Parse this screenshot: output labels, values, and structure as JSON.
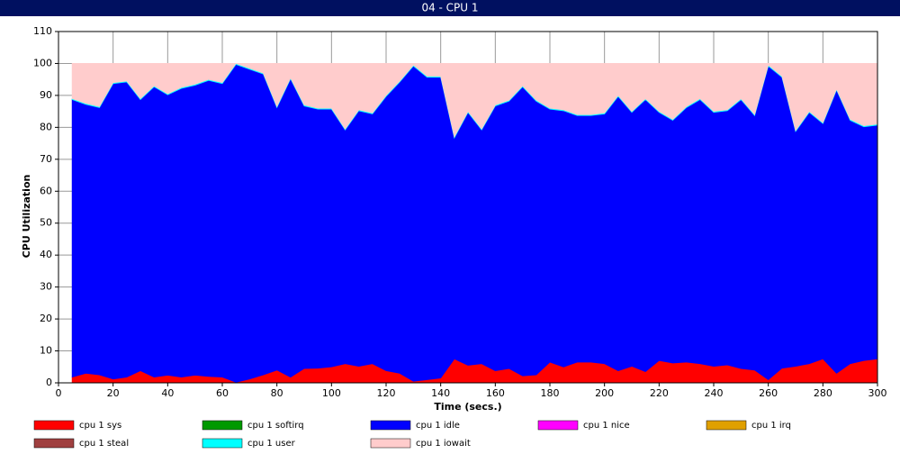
{
  "chart_data": {
    "type": "stacked_area",
    "title": "04 - CPU 1",
    "x_label": "Time (secs.)",
    "y_label": "CPU Utilization",
    "xlim": [
      0,
      300
    ],
    "xticks": [
      0,
      20,
      40,
      60,
      80,
      100,
      120,
      140,
      160,
      180,
      200,
      220,
      240,
      260,
      280,
      300
    ],
    "ylim": [
      0,
      110
    ],
    "yticks": [
      0,
      10,
      20,
      30,
      40,
      50,
      60,
      70,
      80,
      90,
      100,
      110
    ],
    "grid": true,
    "x": [
      5,
      10,
      15,
      20,
      25,
      30,
      35,
      40,
      45,
      50,
      55,
      60,
      65,
      70,
      75,
      80,
      85,
      90,
      95,
      100,
      105,
      110,
      115,
      120,
      125,
      130,
      135,
      140,
      145,
      150,
      155,
      160,
      165,
      170,
      175,
      180,
      185,
      190,
      195,
      200,
      205,
      210,
      215,
      220,
      225,
      230,
      235,
      240,
      245,
      250,
      255,
      260,
      265,
      270,
      275,
      280,
      285,
      290,
      295,
      300
    ],
    "series": [
      {
        "name": "cpu 1 sys",
        "color": "#ff0000",
        "values": [
          1.8,
          3,
          2.5,
          1.2,
          1.8,
          3.8,
          1.8,
          2.4,
          1.8,
          2.4,
          2,
          1.8,
          0.2,
          1.2,
          2.5,
          4,
          1.8,
          4.5,
          4.6,
          5,
          6,
          5.2,
          6,
          3.8,
          3,
          0.5,
          1,
          1.5,
          7.5,
          5.5,
          6,
          3.8,
          4.5,
          2.2,
          2.5,
          6.5,
          5,
          6.5,
          6.5,
          6,
          3.8,
          5.2,
          3.5,
          7,
          6.2,
          6.5,
          6,
          5.2,
          5.6,
          4.5,
          4,
          1,
          4.6,
          5.2,
          6,
          7.5,
          3,
          6,
          7,
          7.5
        ]
      },
      {
        "name": "cpu 1 softirq",
        "color": "#009900",
        "values": [
          0,
          0,
          0,
          0,
          0,
          0,
          0,
          0,
          0,
          0,
          0,
          0,
          0,
          0,
          0,
          0,
          0,
          0,
          0,
          0,
          0,
          0,
          0,
          0,
          0,
          0,
          0,
          0,
          0,
          0,
          0,
          0,
          0,
          0,
          0,
          0,
          0,
          0,
          0,
          0,
          0,
          0,
          0,
          0,
          0,
          0,
          0,
          0,
          0,
          0,
          0,
          0,
          0,
          0,
          0,
          0,
          0,
          0,
          0,
          0
        ]
      },
      {
        "name": "cpu 1 idle",
        "color": "#0000ff",
        "values": [
          86.9,
          84.2,
          83.7,
          92.5,
          92.4,
          84.9,
          90.9,
          87.8,
          90.4,
          90.8,
          92.7,
          91.9,
          99.5,
          97,
          94.2,
          82.2,
          93.4,
          82.2,
          81.1,
          80.7,
          73.2,
          80,
          78.2,
          85.9,
          91.2,
          98.7,
          94.7,
          94.2,
          69.2,
          79.2,
          73.2,
          82.9,
          83.7,
          90.5,
          85.7,
          79.2,
          80.2,
          77.2,
          77.2,
          78.2,
          85.9,
          79.5,
          85.2,
          77.7,
          76,
          79.7,
          82.7,
          79.5,
          79.6,
          84.2,
          79.7,
          98.2,
          91.1,
          73.5,
          78.7,
          73.7,
          88.7,
          76.2,
          73.2,
          73.2
        ]
      },
      {
        "name": "cpu 1 nice",
        "color": "#ff00ff",
        "values": [
          0,
          0,
          0,
          0,
          0,
          0,
          0,
          0,
          0,
          0,
          0,
          0,
          0,
          0,
          0,
          0,
          0,
          0,
          0,
          0,
          0,
          0,
          0,
          0,
          0,
          0,
          0,
          0,
          0,
          0,
          0,
          0,
          0,
          0,
          0,
          0,
          0,
          0,
          0,
          0,
          0,
          0,
          0,
          0,
          0,
          0,
          0,
          0,
          0,
          0,
          0,
          0,
          0,
          0,
          0,
          0,
          0,
          0,
          0,
          0
        ]
      },
      {
        "name": "cpu 1 irq",
        "color": "#e0a000",
        "values": [
          0,
          0,
          0,
          0,
          0,
          0,
          0,
          0,
          0,
          0,
          0,
          0,
          0,
          0,
          0,
          0,
          0,
          0,
          0,
          0,
          0,
          0,
          0,
          0,
          0,
          0,
          0,
          0,
          0,
          0,
          0,
          0,
          0,
          0,
          0,
          0,
          0,
          0,
          0,
          0,
          0,
          0,
          0,
          0,
          0,
          0,
          0,
          0,
          0,
          0,
          0,
          0,
          0,
          0,
          0,
          0,
          0,
          0,
          0,
          0
        ]
      },
      {
        "name": "cpu 1 steal",
        "color": "#a04040",
        "values": [
          0,
          0,
          0,
          0,
          0,
          0,
          0,
          0,
          0,
          0,
          0,
          0,
          0,
          0,
          0,
          0,
          0,
          0,
          0,
          0,
          0,
          0,
          0,
          0,
          0,
          0,
          0,
          0,
          0,
          0,
          0,
          0,
          0,
          0,
          0,
          0,
          0,
          0,
          0,
          0,
          0,
          0,
          0,
          0,
          0,
          0,
          0,
          0,
          0,
          0,
          0,
          0,
          0,
          0,
          0,
          0,
          0,
          0,
          0,
          0
        ]
      },
      {
        "name": "cpu 1 user",
        "color": "#00ffff",
        "values": [
          0.3,
          0.3,
          0.3,
          0.3,
          0.3,
          0.3,
          0.3,
          0.3,
          0.3,
          0.3,
          0.3,
          0.3,
          0.3,
          0.3,
          0.3,
          0.3,
          0.3,
          0.3,
          0.3,
          0.3,
          0.3,
          0.3,
          0.3,
          0.3,
          0.3,
          0.3,
          0.3,
          0.3,
          0.3,
          0.3,
          0.3,
          0.3,
          0.3,
          0.3,
          0.3,
          0.3,
          0.3,
          0.3,
          0.3,
          0.3,
          0.3,
          0.3,
          0.3,
          0.3,
          0.3,
          0.3,
          0.3,
          0.3,
          0.3,
          0.3,
          0.3,
          0.3,
          0.3,
          0.3,
          0.3,
          0.3,
          0.3,
          0.3,
          0.3,
          0.3
        ]
      },
      {
        "name": "cpu 1 iowait",
        "color": "#ffcccc",
        "values": [
          11,
          12.5,
          13.5,
          6,
          5.5,
          11,
          7,
          9.5,
          7.5,
          6.5,
          5,
          6,
          0,
          1.5,
          3,
          13.5,
          4.5,
          13,
          14,
          14,
          20.5,
          14.5,
          15.5,
          10,
          5.5,
          0.5,
          4,
          4,
          23,
          15,
          20.5,
          13,
          11.5,
          7,
          11.5,
          14,
          14.5,
          16,
          16,
          15.5,
          10,
          15,
          11,
          15,
          17.5,
          13.5,
          11,
          15,
          14.5,
          11,
          16,
          0.5,
          4,
          21,
          15,
          18.5,
          8,
          17.5,
          19.5,
          19
        ]
      }
    ]
  }
}
